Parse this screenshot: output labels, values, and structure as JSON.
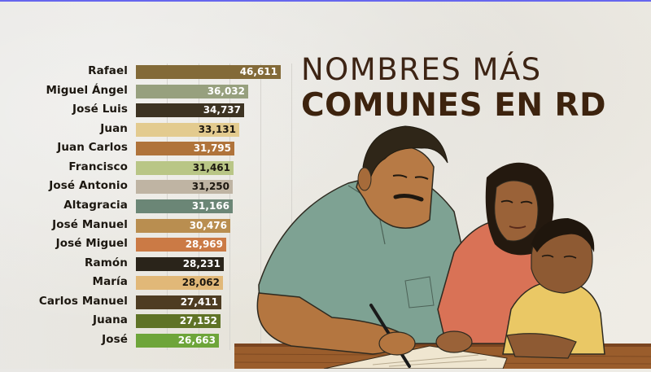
{
  "title": {
    "line1": "NOMBRES MÁS",
    "line2": "COMUNES EN RD"
  },
  "illustration": {
    "description": "Illustrated father writing on paper at a wooden table beside a mother and young child"
  },
  "colors": {
    "title": "#3d2414",
    "background": "#ebe9e5",
    "top_line": "#6666ee"
  },
  "chart_data": {
    "type": "bar",
    "orientation": "horizontal",
    "title": "NOMBRES MÁS COMUNES EN RD",
    "xlabel": "",
    "ylabel": "",
    "grid": true,
    "xlim": [
      0,
      50000
    ],
    "categories": [
      "Rafael",
      "Miguel Ángel",
      "José Luis",
      "Juan",
      "Juan Carlos",
      "Francisco",
      "José Antonio",
      "Altagracia",
      "José Manuel",
      "José Miguel",
      "Ramón",
      "María",
      "Carlos Manuel",
      "Juana",
      "José"
    ],
    "values": [
      46611,
      36032,
      34737,
      33131,
      31795,
      31461,
      31250,
      31166,
      30476,
      28969,
      28231,
      28062,
      27411,
      27152,
      26663
    ],
    "value_labels": [
      "46,611",
      "36,032",
      "34,737",
      "33,131",
      "31,795",
      "31,461",
      "31,250",
      "31,166",
      "30,476",
      "28,969",
      "28,231",
      "28,062",
      "27,411",
      "27,152",
      "26,663"
    ],
    "bar_colors": [
      "#836a38",
      "#97a07e",
      "#3d3322",
      "#e3cb8f",
      "#b0733a",
      "#b9c686",
      "#bfb4a3",
      "#6b8676",
      "#b98e50",
      "#cb7a45",
      "#2a241a",
      "#e1b878",
      "#4e3c22",
      "#5f7326",
      "#6ea53a"
    ],
    "value_text_dark": [
      false,
      false,
      false,
      true,
      false,
      true,
      true,
      false,
      false,
      false,
      false,
      true,
      false,
      false,
      false
    ]
  }
}
